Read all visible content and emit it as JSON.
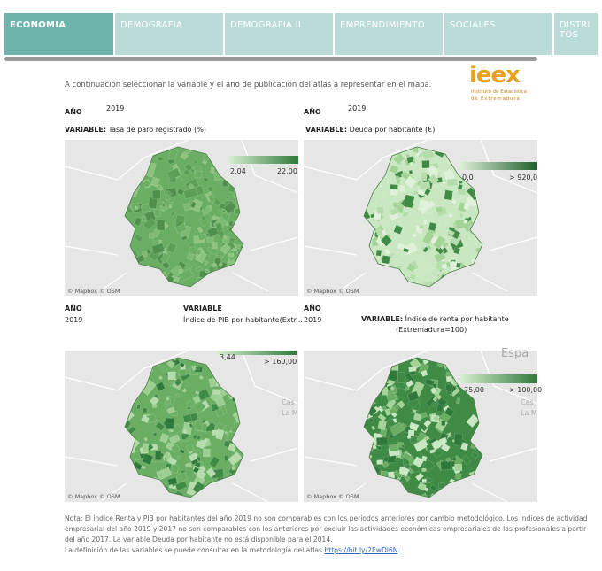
{
  "tabs": [
    "ECONOMIA",
    "DEMOGRAFIA",
    "DEMOGRAFIA II",
    "EMPRENDIMIENTO",
    "SOCIALES",
    "DISTRITOS"
  ],
  "intro": "A continuación seleccionar la variable  y el año de publicación del atlas a representar en el mapa.",
  "logo": {
    "name": "ieex",
    "line1": "Instituto de Estadística",
    "line2": "de Extremadura"
  },
  "panels": [
    {
      "year_label": "AÑO",
      "year": "2019",
      "variable_label": "VARIABLE:",
      "variable": "Tasa de paro registrado (%)",
      "legend_min": "2,04",
      "legend_max": "22,00",
      "attribution": "© Mapbox © OSM"
    },
    {
      "year_label": "AÑO",
      "year": "2019",
      "variable_label": "VARIABLE:",
      "variable": "Deuda por habitante (€)",
      "legend_min": "0,0",
      "legend_max": "> 920,0",
      "attribution": "© Mapbox © OSM"
    },
    {
      "year_label": "AÑO",
      "year": "2019",
      "variable_label": "VARIABLE",
      "variable": "Índice de PIB por habitante(Extr...",
      "legend_min": "3,44",
      "legend_max": "> 160,00",
      "attribution": "© Mapbox © OSM",
      "map_labels": [
        "Cas",
        "La M"
      ]
    },
    {
      "year_label": "AÑO",
      "year": "2019",
      "variable_label": "VARIABLE:",
      "variable": "Índice de renta por habitante",
      "variable_line2": "(Extremadura=100)",
      "legend_min": "75,00",
      "legend_max": "> 100,00",
      "attribution": "© Mapbox © OSM",
      "map_labels": [
        "Espa",
        "Cas",
        "La M"
      ]
    }
  ],
  "note": [
    "Nota:  El índice Renta y PIB por habitantes del año 2019 no son comparables con los periodos anteriores por cambio metodológico. Los  Índices de actividad",
    "empresarial del año 2019 y 2017 no son comparables con los anteriores por excluir las actividades económicas empresariales de los profesionales a partir",
    "del año 2017. La variable Deuda por habitante no está disponible para el 2014."
  ],
  "definition": "La definición de las variables se puede consultar en la metodología del atlas ",
  "link": "https://bit.ly/2EwDl6N"
}
